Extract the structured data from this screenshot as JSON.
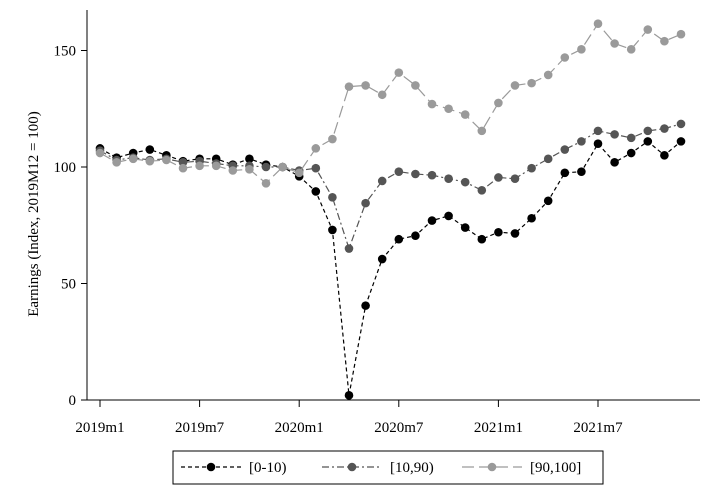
{
  "chart_data": {
    "type": "line",
    "ylabel": "Earnings (Index, 2019M12 = 100)",
    "xlabel": "",
    "ylim": [
      0,
      165
    ],
    "y_ticks": [
      0,
      50,
      100,
      150
    ],
    "x_start": "2019m1",
    "x_ticks": [
      {
        "label": "2019m1",
        "month": "2019-01"
      },
      {
        "label": "2019m7",
        "month": "2019-07"
      },
      {
        "label": "2020m1",
        "month": "2020-01"
      },
      {
        "label": "2020m7",
        "month": "2020-07"
      },
      {
        "label": "2021m1",
        "month": "2021-01"
      },
      {
        "label": "2021m7",
        "month": "2021-07"
      }
    ],
    "grid": false,
    "legend_position": "bottom",
    "series": [
      {
        "name": "[0-10)",
        "color": "#000000",
        "dash": "4,3",
        "values": [
          108,
          104,
          106,
          107.5,
          105,
          102.5,
          103.5,
          103.5,
          101,
          103.5,
          101,
          100,
          96,
          89.5,
          73,
          2,
          40.5,
          60.5,
          69,
          70.5,
          77,
          79,
          74,
          69,
          72,
          71.5,
          78,
          85.5,
          97.5,
          98,
          110,
          102,
          106,
          111,
          105,
          111
        ]
      },
      {
        "name": "[10,90)",
        "color": "#555555",
        "dash": "7,3,2,3",
        "values": [
          107,
          103,
          104,
          103,
          103.5,
          102,
          102.5,
          101.5,
          100.5,
          100.5,
          100,
          100,
          98.5,
          99.5,
          87,
          65,
          84.5,
          94,
          98,
          97,
          96.5,
          95,
          93.5,
          90,
          95.5,
          95,
          99.5,
          103.5,
          107.5,
          111,
          115.5,
          114,
          112.5,
          115.5,
          116.5,
          118.5
        ]
      },
      {
        "name": "[90,100]",
        "color": "#9a9a9a",
        "dash": "12,5",
        "values": [
          106,
          102,
          103.5,
          102.5,
          103,
          99.5,
          100.5,
          100.5,
          98.5,
          99,
          93,
          100,
          97.5,
          108,
          112,
          134.5,
          135,
          131,
          140.5,
          135,
          127,
          125,
          122.5,
          115.5,
          127.5,
          135,
          136,
          139.5,
          147,
          150.5,
          161.5,
          153,
          150.5,
          159,
          154,
          157
        ]
      }
    ]
  }
}
